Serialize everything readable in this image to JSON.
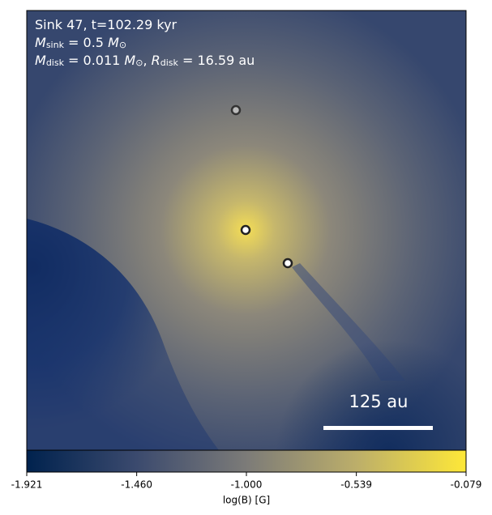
{
  "chart_data": {
    "type": "image",
    "annotation_lines": [
      [
        {
          "t": "Sink 47, t=102.29 kyr"
        }
      ],
      [
        {
          "i": "M"
        },
        {
          "sub": "sink"
        },
        {
          "t": " = 0.5 "
        },
        {
          "i": "M"
        },
        {
          "sub": "⊙"
        }
      ],
      [
        {
          "i": "M"
        },
        {
          "sub": "disk"
        },
        {
          "t": " = 0.011 "
        },
        {
          "i": "M"
        },
        {
          "sub": "⊙"
        },
        {
          "t": ", "
        },
        {
          "i": "R"
        },
        {
          "sub": "disk"
        },
        {
          "t": " = 16.59 au"
        }
      ]
    ],
    "scale_bar_label": "125 au",
    "colorbar_label": "log(B) [G]",
    "clim": [
      -1.921,
      -0.079
    ],
    "cticks": [
      -1.921,
      {
        "value": -1.46,
        "label": "-1.460"
      },
      {
        "value": -1.0,
        "label": "-1.000"
      },
      -0.539,
      -0.079
    ],
    "colormap": [
      "#00224e",
      "#3b4a6e",
      "#7c7b78",
      "#bcae6a",
      "#fee838"
    ]
  }
}
